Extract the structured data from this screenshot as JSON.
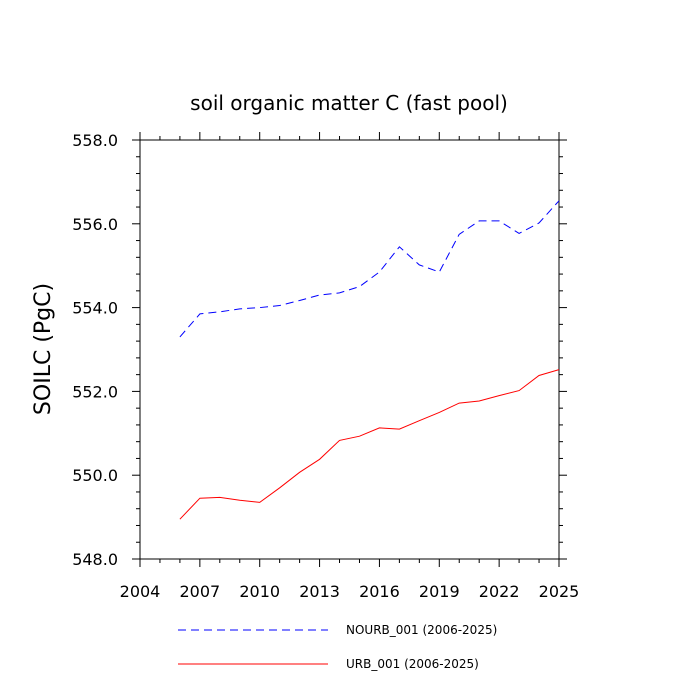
{
  "chart_data": {
    "type": "line",
    "title": "soil organic matter C (fast pool)",
    "xlabel": "",
    "ylabel": "SOILC  (PgC)",
    "xlim": [
      2004,
      2025
    ],
    "ylim": [
      548.0,
      558.0
    ],
    "x_ticks": [
      "2004",
      "2007",
      "2010",
      "2013",
      "2016",
      "2019",
      "2022",
      "2025"
    ],
    "y_ticks": [
      "548.0",
      "550.0",
      "552.0",
      "554.0",
      "556.0",
      "558.0"
    ],
    "grid": false,
    "legend_position": "bottom",
    "x": [
      2006,
      2007,
      2008,
      2009,
      2010,
      2011,
      2012,
      2013,
      2014,
      2015,
      2016,
      2017,
      2018,
      2019,
      2020,
      2021,
      2022,
      2023,
      2024,
      2025
    ],
    "series": [
      {
        "name": "NOURB_001 (2006-2025)",
        "color": "#0000ff",
        "line_style": "dashed",
        "values": [
          553.3,
          553.85,
          553.9,
          553.97,
          554.0,
          554.05,
          554.17,
          554.3,
          554.35,
          554.5,
          554.85,
          555.45,
          555.02,
          554.85,
          555.75,
          556.07,
          556.07,
          555.77,
          556.02,
          556.55
        ]
      },
      {
        "name": "URB_001 (2006-2025)",
        "color": "#ff0000",
        "line_style": "solid",
        "values": [
          548.95,
          549.45,
          549.47,
          549.4,
          549.35,
          549.7,
          550.07,
          550.38,
          550.83,
          550.93,
          551.13,
          551.1,
          551.3,
          551.5,
          551.72,
          551.77,
          551.9,
          552.02,
          552.38,
          552.52
        ]
      }
    ]
  }
}
